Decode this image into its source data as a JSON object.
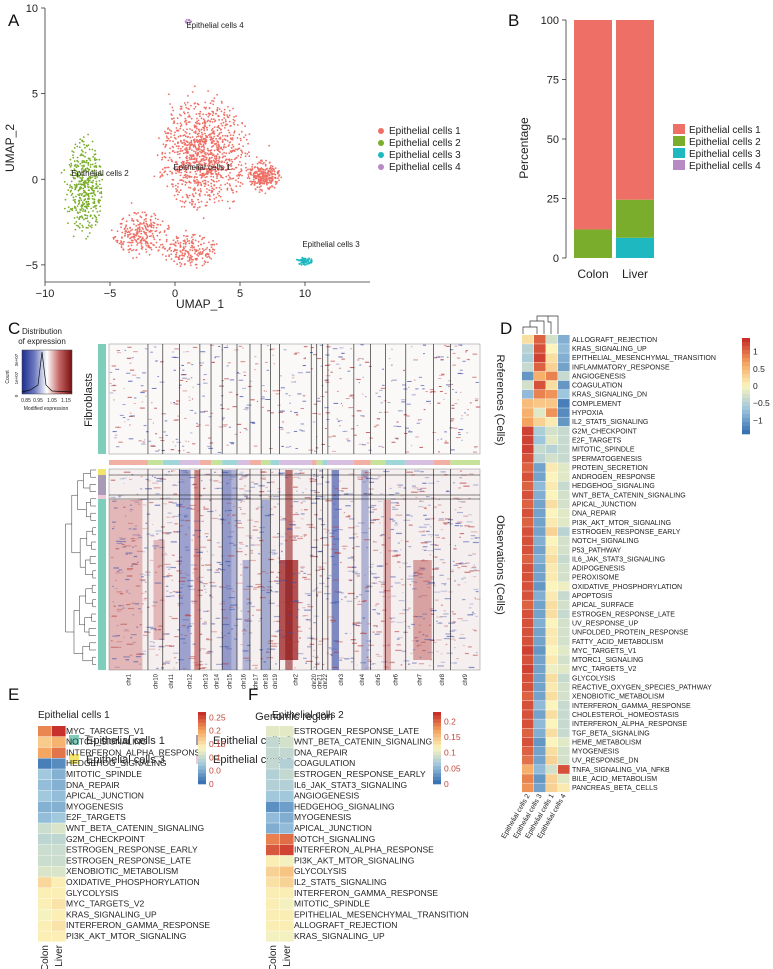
{
  "panel_labels": [
    "A",
    "B",
    "C",
    "D",
    "E",
    "F"
  ],
  "colors": {
    "c1": "#ee6f65",
    "c2": "#7aad2b",
    "c3": "#1eb9c0",
    "c4": "#b78ac4",
    "blue": "#3d6eb0",
    "red": "#c0302a"
  },
  "chart_data": [
    {
      "id": "A",
      "type": "scatter",
      "xlabel": "UMAP_1",
      "ylabel": "UMAP_2",
      "xlim": [
        -10,
        15
      ],
      "ylim": [
        -6,
        10
      ],
      "xticks": [
        -10,
        -5,
        0,
        5,
        10
      ],
      "yticks": [
        -5,
        0,
        5,
        10
      ],
      "series": [
        {
          "name": "Epithelial cells 1",
          "color": "#ee6f65",
          "center": [
            2,
            1.5
          ]
        },
        {
          "name": "Epithelial cells 2",
          "color": "#7aad2b",
          "center": [
            -7,
            -0.5
          ]
        },
        {
          "name": "Epithelial cells 3",
          "color": "#1eb9c0",
          "center": [
            10,
            -4.8
          ]
        },
        {
          "name": "Epithelial cells 4",
          "color": "#b78ac4",
          "center": [
            1,
            9.2
          ]
        }
      ],
      "cluster_labels": [
        "Epithelial cells 4",
        "Epithelial cells 1",
        "Epithelial cells 2",
        "Epithelial cells 3"
      ]
    },
    {
      "id": "B",
      "type": "bar",
      "stacked": true,
      "ylabel": "Percentage",
      "categories": [
        "Colon",
        "Liver"
      ],
      "ylim": [
        0,
        100
      ],
      "yticks": [
        0,
        25,
        50,
        75,
        100
      ],
      "series": [
        {
          "name": "Epithelial cells 4",
          "color": "#b78ac4",
          "values": [
            0,
            0
          ]
        },
        {
          "name": "Epithelial cells 3",
          "color": "#1eb9c0",
          "values": [
            0,
            8.5
          ]
        },
        {
          "name": "Epithelial cells 2",
          "color": "#7aad2b",
          "values": [
            12,
            16
          ]
        },
        {
          "name": "Epithelial cells 1",
          "color": "#ee6f65",
          "values": [
            88,
            75.5
          ]
        }
      ],
      "legend": [
        "Epithelial cells 1",
        "Epithelial cells 2",
        "Epithelial cells 3",
        "Epithelial cells 4"
      ]
    },
    {
      "id": "C",
      "type": "heatmap",
      "xlabel": "Genomic region",
      "key_title": "Distribution\nof expression",
      "key_xlabel": "Modified expression",
      "key_ylabel": "Count",
      "key_ticks": [
        "0.85",
        "0.95",
        "1.05",
        "1.15"
      ],
      "key_yticks": [
        "0",
        "1e+07",
        "3e+07"
      ],
      "ref_label": "Fibroblasts",
      "ref_side": "References (Cells)",
      "obs_side": "Observations (Cells)",
      "chromosomes": [
        "chr1",
        "chr10",
        "chr11",
        "chr12",
        "chr13",
        "chr14",
        "chr15",
        "chr16",
        "chr17",
        "chr18",
        "chr19",
        "chr2",
        "chr20",
        "chr21",
        "chr22",
        "chr3",
        "chr4",
        "chr5",
        "chr6",
        "chr7",
        "chr8",
        "chr9"
      ],
      "legend": [
        {
          "name": "Epithelial cells 1",
          "color": "#7fcdbb"
        },
        {
          "name": "Epithelial cells 3",
          "color": "#f2e46d"
        },
        {
          "name": "Epithelial cells 2",
          "color": "#a89bb5"
        },
        {
          "name": "Epithelial cells 4",
          "color": "#ecc8d9"
        }
      ]
    },
    {
      "id": "D",
      "type": "heatmap",
      "columns": [
        "Epithelial cells 2",
        "Epithelial cells 3",
        "Epithelial cells 1",
        "Epithelial cells 4"
      ],
      "scale_ticks": [
        "1",
        "0.5",
        "0",
        "−0.5",
        "−1"
      ],
      "rows": [
        {
          "name": "ALLOGRAFT_REJECTION",
          "values": [
            0.2,
            1.1,
            -0.3,
            -0.9
          ]
        },
        {
          "name": "KRAS_SIGNALING_UP",
          "values": [
            -0.5,
            1.2,
            0.0,
            -0.8
          ]
        },
        {
          "name": "EPITHELIAL_MESENCHYMAL_TRANSITION",
          "values": [
            -0.6,
            1.3,
            0.2,
            -0.9
          ]
        },
        {
          "name": "INFLAMMATORY_RESPONSE",
          "values": [
            -0.4,
            1.1,
            0.3,
            -1.0
          ]
        },
        {
          "name": "ANGIOGENESIS",
          "values": [
            -1.1,
            0.6,
            0.9,
            -0.4
          ]
        },
        {
          "name": "COAGULATION",
          "values": [
            -0.3,
            1.2,
            0.2,
            -1.1
          ]
        },
        {
          "name": "KRAS_SIGNALING_DN",
          "values": [
            -0.8,
            0.9,
            0.8,
            -0.7
          ]
        },
        {
          "name": "COMPLEMENT",
          "values": [
            0.5,
            0.4,
            0.4,
            -1.3
          ]
        },
        {
          "name": "HYPOXIA",
          "values": [
            0.6,
            -0.2,
            0.8,
            -1.2
          ]
        },
        {
          "name": "IL2_STAT5_SIGNALING",
          "values": [
            0.7,
            0.3,
            0.1,
            -1.1
          ]
        },
        {
          "name": "G2M_CHECKPOINT",
          "values": [
            1.3,
            -0.6,
            -0.3,
            -0.4
          ]
        },
        {
          "name": "E2F_TARGETS",
          "values": [
            1.3,
            -0.7,
            -0.2,
            -0.4
          ]
        },
        {
          "name": "MITOTIC_SPINDLE",
          "values": [
            1.3,
            -0.4,
            -0.5,
            -0.4
          ]
        },
        {
          "name": "SPERMATOGENESIS",
          "values": [
            1.2,
            -0.5,
            -0.3,
            -0.4
          ]
        },
        {
          "name": "PROTEIN_SECRETION",
          "values": [
            1.1,
            -1.0,
            0.1,
            -0.2
          ]
        },
        {
          "name": "ANDROGEN_RESPONSE",
          "values": [
            1.2,
            -1.0,
            0.0,
            -0.2
          ]
        },
        {
          "name": "HEDGEHOG_SIGNALING",
          "values": [
            1.1,
            -0.8,
            0.1,
            -0.4
          ]
        },
        {
          "name": "WNT_BETA_CATENIN_SIGNALING",
          "values": [
            1.2,
            -0.9,
            0.0,
            -0.3
          ]
        },
        {
          "name": "APICAL_JUNCTION",
          "values": [
            1.1,
            -1.0,
            0.2,
            -0.3
          ]
        },
        {
          "name": "DNA_REPAIR",
          "values": [
            1.2,
            -1.0,
            0.0,
            -0.2
          ]
        },
        {
          "name": "PI3K_AKT_MTOR_SIGNALING",
          "values": [
            1.1,
            -1.0,
            0.1,
            -0.2
          ]
        },
        {
          "name": "ESTROGEN_RESPONSE_EARLY",
          "values": [
            1.2,
            -1.0,
            0.3,
            -0.5
          ]
        },
        {
          "name": "NOTCH_SIGNALING",
          "values": [
            1.2,
            -0.9,
            0.0,
            -0.3
          ]
        },
        {
          "name": "P53_PATHWAY",
          "values": [
            1.2,
            -1.0,
            0.1,
            -0.3
          ]
        },
        {
          "name": "IL6_JAK_STAT3_SIGNALING",
          "values": [
            1.1,
            -0.9,
            0.2,
            -0.4
          ]
        },
        {
          "name": "ADIPOGENESIS",
          "values": [
            1.2,
            -1.0,
            0.1,
            -0.3
          ]
        },
        {
          "name": "PEROXISOME",
          "values": [
            1.2,
            -1.0,
            0.1,
            -0.3
          ]
        },
        {
          "name": "OXIDATIVE_PHOSPHORYLATION",
          "values": [
            1.2,
            -1.1,
            0.0,
            -0.1
          ]
        },
        {
          "name": "APOPTOSIS",
          "values": [
            1.2,
            -0.9,
            0.1,
            -0.4
          ]
        },
        {
          "name": "APICAL_SURFACE",
          "values": [
            1.1,
            -1.0,
            0.2,
            -0.3
          ]
        },
        {
          "name": "ESTROGEN_RESPONSE_LATE",
          "values": [
            1.2,
            -1.0,
            0.2,
            -0.4
          ]
        },
        {
          "name": "UV_RESPONSE_UP",
          "values": [
            1.2,
            -0.9,
            0.0,
            -0.3
          ]
        },
        {
          "name": "UNFOLDED_PROTEIN_RESPONSE",
          "values": [
            1.2,
            -1.0,
            0.1,
            -0.3
          ]
        },
        {
          "name": "FATTY_ACID_METABOLISM",
          "values": [
            1.2,
            -1.0,
            0.1,
            -0.3
          ]
        },
        {
          "name": "MYC_TARGETS_V1",
          "values": [
            1.3,
            -1.1,
            0.0,
            -0.2
          ]
        },
        {
          "name": "MTORC1_SIGNALING",
          "values": [
            1.2,
            -1.0,
            0.1,
            -0.3
          ]
        },
        {
          "name": "MYC_TARGETS_V2",
          "values": [
            1.3,
            -1.0,
            -0.1,
            -0.2
          ]
        },
        {
          "name": "GLYCOLYSIS",
          "values": [
            1.2,
            -1.0,
            0.2,
            -0.4
          ]
        },
        {
          "name": "REACTIVE_OXYGEN_SPECIES_PATHWAY",
          "values": [
            1.2,
            -1.0,
            0.1,
            -0.3
          ]
        },
        {
          "name": "XENOBIOTIC_METABOLISM",
          "values": [
            1.1,
            -1.0,
            0.2,
            -0.3
          ]
        },
        {
          "name": "INTERFERON_GAMMA_RESPONSE",
          "values": [
            1.2,
            -0.8,
            0.0,
            -0.4
          ]
        },
        {
          "name": "CHOLESTEROL_HOMEOSTASIS",
          "values": [
            1.2,
            -1.0,
            0.2,
            -0.4
          ]
        },
        {
          "name": "INTERFERON_ALPHA_RESPONSE",
          "values": [
            1.2,
            -0.8,
            0.0,
            -0.4
          ]
        },
        {
          "name": "TGF_BETA_SIGNALING",
          "values": [
            1.1,
            -0.9,
            0.2,
            -0.4
          ]
        },
        {
          "name": "HEME_METABOLISM",
          "values": [
            1.2,
            -1.1,
            0.0,
            -0.2
          ]
        },
        {
          "name": "MYOGENESIS",
          "values": [
            1.1,
            -1.0,
            0.2,
            -0.3
          ]
        },
        {
          "name": "UV_RESPONSE_DN",
          "values": [
            1.0,
            -1.0,
            0.3,
            -0.3
          ]
        },
        {
          "name": "TNFA_SIGNALING_VIA_NFKB",
          "values": [
            0.6,
            -0.8,
            -0.3,
            1.2
          ]
        },
        {
          "name": "BILE_ACID_METABOLISM",
          "values": [
            0.9,
            -1.1,
            0.3,
            -0.2
          ]
        },
        {
          "name": "PANCREAS_BETA_CELLS",
          "values": [
            0.8,
            -1.0,
            0.3,
            0.1
          ]
        }
      ]
    },
    {
      "id": "E",
      "type": "heatmap",
      "title": "Epithelial cells 1",
      "columns": [
        "Colon",
        "Liver"
      ],
      "scale_ticks": [
        "0.25",
        "0.2",
        "0.15",
        "0.1",
        "0.0",
        "0"
      ],
      "vmin": 0,
      "vmax": 0.27,
      "rows": [
        {
          "name": "MYC_TARGETS_V1",
          "values": [
            0.22,
            0.27
          ]
        },
        {
          "name": "NOTCH_SIGNALING",
          "values": [
            0.17,
            0.19
          ]
        },
        {
          "name": "INTERFERON_ALPHA_RESPONSE",
          "values": [
            0.2,
            0.23
          ]
        },
        {
          "name": "HEDGEHOG_SIGNALING",
          "values": [
            0.01,
            0.02
          ]
        },
        {
          "name": "MITOTIC_SPINDLE",
          "values": [
            0.07,
            0.05
          ]
        },
        {
          "name": "DNA_REPAIR",
          "values": [
            0.06,
            0.05
          ]
        },
        {
          "name": "APICAL_JUNCTION",
          "values": [
            0.07,
            0.06
          ]
        },
        {
          "name": "MYOGENESIS",
          "values": [
            0.05,
            0.05
          ]
        },
        {
          "name": "E2F_TARGETS",
          "values": [
            0.06,
            0.07
          ]
        },
        {
          "name": "WNT_BETA_CATENIN_SIGNALING",
          "values": [
            0.1,
            0.11
          ]
        },
        {
          "name": "G2M_CHECKPOINT",
          "values": [
            0.09,
            0.09
          ]
        },
        {
          "name": "ESTROGEN_RESPONSE_EARLY",
          "values": [
            0.1,
            0.1
          ]
        },
        {
          "name": "ESTROGEN_RESPONSE_LATE",
          "values": [
            0.1,
            0.1
          ]
        },
        {
          "name": "XENOBIOTIC_METABOLISM",
          "values": [
            0.11,
            0.11
          ]
        },
        {
          "name": "OXIDATIVE_PHOSPHORYLATION",
          "values": [
            0.16,
            0.14
          ]
        },
        {
          "name": "GLYCOLYSIS",
          "values": [
            0.14,
            0.14
          ]
        },
        {
          "name": "MYC_TARGETS_V2",
          "values": [
            0.14,
            0.15
          ]
        },
        {
          "name": "KRAS_SIGNALING_UP",
          "values": [
            0.13,
            0.14
          ]
        },
        {
          "name": "INTERFERON_GAMMA_RESPONSE",
          "values": [
            0.14,
            0.15
          ]
        },
        {
          "name": "PI3K_AKT_MTOR_SIGNALING",
          "values": [
            0.14,
            0.14
          ]
        }
      ]
    },
    {
      "id": "F",
      "type": "heatmap",
      "title": "Epithelial cells 2",
      "columns": [
        "Colon",
        "Liver"
      ],
      "scale_ticks": [
        "0.2",
        "0.15",
        "0.1",
        "0.05",
        "0"
      ],
      "vmin": 0,
      "vmax": 0.23,
      "rows": [
        {
          "name": "ESTROGEN_RESPONSE_LATE",
          "values": [
            0.1,
            0.1
          ]
        },
        {
          "name": "WNT_BETA_CATENIN_SIGNALING",
          "values": [
            0.08,
            0.09
          ]
        },
        {
          "name": "DNA_REPAIR",
          "values": [
            0.08,
            0.08
          ]
        },
        {
          "name": "COAGULATION",
          "values": [
            0.08,
            0.07
          ]
        },
        {
          "name": "ESTROGEN_RESPONSE_EARLY",
          "values": [
            0.07,
            0.08
          ]
        },
        {
          "name": "IL6_JAK_STAT3_SIGNALING",
          "values": [
            0.07,
            0.07
          ]
        },
        {
          "name": "ANGIOGENESIS",
          "values": [
            0.06,
            0.06
          ]
        },
        {
          "name": "HEDGEHOG_SIGNALING",
          "values": [
            0.02,
            0.03
          ]
        },
        {
          "name": "MYOGENESIS",
          "values": [
            0.05,
            0.04
          ]
        },
        {
          "name": "APICAL_JUNCTION",
          "values": [
            0.04,
            0.05
          ]
        },
        {
          "name": "NOTCH_SIGNALING",
          "values": [
            0.19,
            0.2
          ]
        },
        {
          "name": "INTERFERON_ALPHA_RESPONSE",
          "values": [
            0.21,
            0.22
          ]
        },
        {
          "name": "PI3K_AKT_MTOR_SIGNALING",
          "values": [
            0.12,
            0.11
          ]
        },
        {
          "name": "GLYCOLYSIS",
          "values": [
            0.14,
            0.15
          ]
        },
        {
          "name": "IL2_STAT5_SIGNALING",
          "values": [
            0.13,
            0.14
          ]
        },
        {
          "name": "INTERFERON_GAMMA_RESPONSE",
          "values": [
            0.12,
            0.12
          ]
        },
        {
          "name": "MITOTIC_SPINDLE",
          "values": [
            0.12,
            0.11
          ]
        },
        {
          "name": "EPITHELIAL_MESENCHYMAL_TRANSITION",
          "values": [
            0.12,
            0.12
          ]
        },
        {
          "name": "ALLOGRAFT_REJECTION",
          "values": [
            0.12,
            0.12
          ]
        },
        {
          "name": "KRAS_SIGNALING_UP",
          "values": [
            0.11,
            0.11
          ]
        }
      ]
    }
  ]
}
